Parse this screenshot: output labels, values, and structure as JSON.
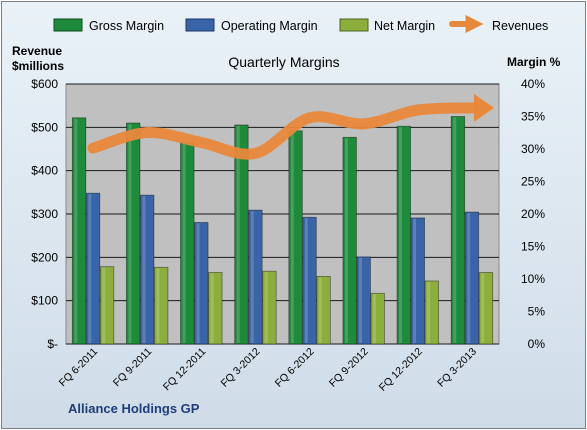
{
  "chart_data": {
    "type": "bar",
    "title": "Quarterly Margins",
    "footer": "Alliance Holdings GP",
    "left_axis_label": [
      "Revenue",
      "$millions"
    ],
    "right_axis_label": "Margin %",
    "categories": [
      "FQ 6-2011",
      "FQ 9-2011",
      "FQ 12-2011",
      "FQ 3-2012",
      "FQ 6-2012",
      "FQ 9-2012",
      "FQ 12-2012",
      "FQ 3-2013"
    ],
    "left_ticks": [
      "$-",
      "$100",
      "$200",
      "$300",
      "$400",
      "$500",
      "$600"
    ],
    "right_ticks": [
      "0%",
      "5%",
      "10%",
      "15%",
      "20%",
      "25%",
      "30%",
      "35%",
      "40%"
    ],
    "left_ylim": [
      0,
      600
    ],
    "right_ylim": [
      0,
      40
    ],
    "grid": true,
    "legend_position": "top",
    "bar_series": [
      {
        "name": "Gross Margin",
        "color": "#1e8a3c",
        "values": [
          34.8,
          34.0,
          31.0,
          33.7,
          32.8,
          31.8,
          33.5,
          35.0
        ]
      },
      {
        "name": "Operating Margin",
        "color": "#3a64a8",
        "values": [
          23.2,
          22.9,
          18.7,
          20.6,
          19.5,
          13.4,
          19.4,
          20.3
        ]
      },
      {
        "name": "Net Margin",
        "color": "#8cae3c",
        "values": [
          11.9,
          11.8,
          11.0,
          11.2,
          10.4,
          7.8,
          9.7,
          11.0
        ]
      }
    ],
    "line_series": {
      "name": "Revenues",
      "color": "#e8883a",
      "values": [
        452,
        488,
        465,
        440,
        522,
        508,
        540,
        545
      ]
    }
  }
}
